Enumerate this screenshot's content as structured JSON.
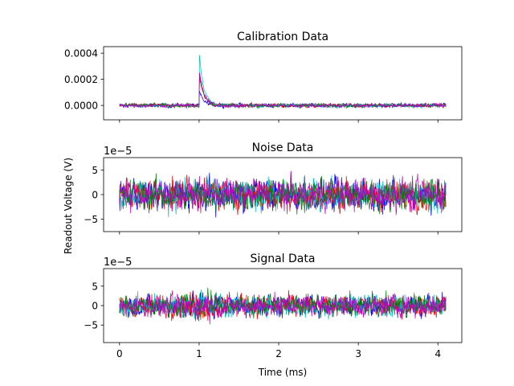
{
  "figure": {
    "ylabel": "Readout Voltage (V)",
    "xlabel": "Time (ms)"
  },
  "series_colors": [
    "#0000ff",
    "#ff0000",
    "#00bfbf",
    "#008000",
    "#bf00bf"
  ],
  "chart_data": [
    {
      "type": "line",
      "title": "Calibration Data",
      "xlim": [
        -0.2,
        4.3
      ],
      "ylim": [
        -0.00011,
        0.00045
      ],
      "xticks": [
        0,
        1,
        2,
        3,
        4
      ],
      "xtick_labels_visible": false,
      "yticks": [
        0.0,
        0.0002,
        0.0004
      ],
      "ytick_labels": [
        "0.0000",
        "0.0002",
        "0.0004"
      ],
      "offset_text": "",
      "grid": false,
      "x_range": [
        0,
        4.1
      ],
      "series_peaks": [
        0.00011,
        0.00025,
        0.00042,
        0.00025,
        0.00028
      ],
      "pulse_start_ms": 1.0,
      "noise_amplitude": 2e-05
    },
    {
      "type": "line",
      "title": "Noise Data",
      "xlim": [
        -0.2,
        4.3
      ],
      "ylim": [
        -7.5e-05,
        7.5e-05
      ],
      "xticks": [
        0,
        1,
        2,
        3,
        4
      ],
      "xtick_labels_visible": false,
      "yticks": [
        -5e-05,
        0.0,
        5e-05
      ],
      "ytick_labels": [
        "−5",
        "0",
        "5"
      ],
      "offset_text": "1e−5",
      "grid": false,
      "x_range": [
        0,
        4.1
      ],
      "noise_amplitude": 5e-05
    },
    {
      "type": "line",
      "title": "Signal Data",
      "xlim": [
        -0.2,
        4.3
      ],
      "ylim": [
        -9.5e-05,
        9.5e-05
      ],
      "xticks": [
        0,
        1,
        2,
        3,
        4
      ],
      "xtick_labels": [
        "0",
        "1",
        "2",
        "3",
        "4"
      ],
      "xtick_labels_visible": true,
      "yticks": [
        -5e-05,
        0.0,
        5e-05
      ],
      "ytick_labels": [
        "−5",
        "0",
        "5"
      ],
      "offset_text": "1e−5",
      "grid": false,
      "x_range": [
        0,
        4.1
      ],
      "noise_amplitude": 5e-05
    }
  ]
}
